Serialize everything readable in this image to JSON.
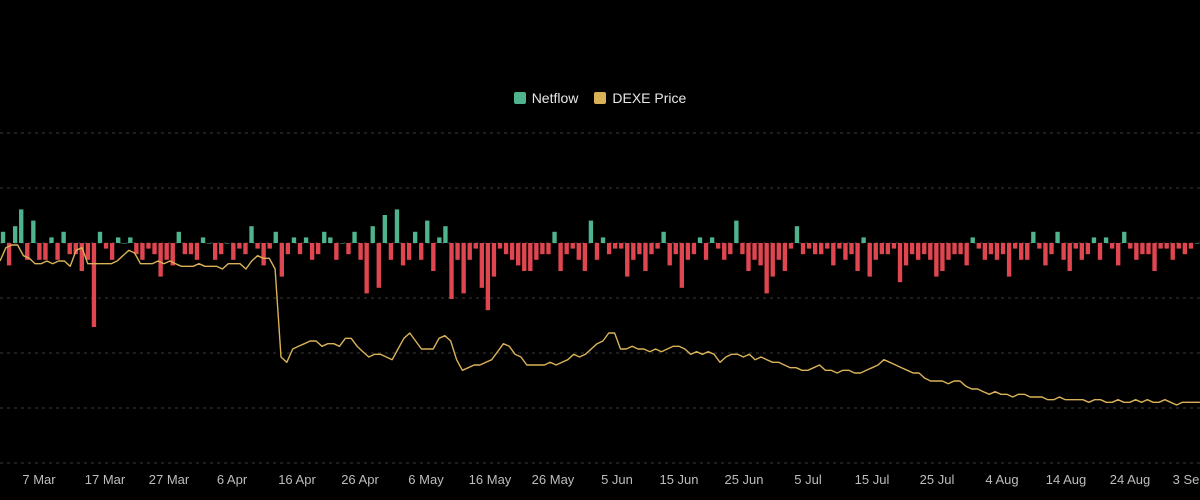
{
  "chart_data": {
    "type": "bar",
    "legend": {
      "placement": "top-center",
      "items": [
        {
          "label": "Netflow",
          "color": "#4fb38d"
        },
        {
          "label": "DEXE Price",
          "color": "#d9b257"
        }
      ]
    },
    "x_ticks": [
      "7 Mar",
      "17 Mar",
      "27 Mar",
      "6 Apr",
      "16 Apr",
      "26 Apr",
      "6 May",
      "16 May",
      "26 May",
      "5 Jun",
      "15 Jun",
      "25 Jun",
      "5 Jul",
      "15 Jul",
      "25 Jul",
      "4 Aug",
      "14 Aug",
      "24 Aug",
      "3 Se"
    ],
    "grid": true,
    "colors": {
      "positive": "#4fb38d",
      "negative": "#e0464f",
      "price": "#d9b257",
      "grid": "#3a3a3a"
    },
    "series": [
      {
        "name": "Netflow",
        "type": "bar",
        "values": [
          2,
          -4,
          3,
          6,
          -3,
          4,
          -3,
          -3,
          1,
          -3,
          2,
          -2,
          -2,
          -5,
          -3,
          -15,
          2,
          -1,
          -3,
          1,
          0,
          1,
          -2,
          -3,
          -1,
          -2,
          -6,
          -3,
          -4,
          2,
          -2,
          -2,
          -3,
          1,
          0,
          -3,
          -2,
          0,
          -3,
          -1,
          -2,
          3,
          -1,
          -4,
          -1,
          2,
          -6,
          -2,
          1,
          -2,
          1,
          -3,
          -2,
          2,
          1,
          -3,
          0,
          -2,
          2,
          -3,
          -9,
          3,
          -8,
          5,
          -3,
          6,
          -4,
          -3,
          2,
          -3,
          4,
          -5,
          1,
          3,
          -10,
          -3,
          -9,
          -3,
          -1,
          -8,
          -12,
          -6,
          -1,
          -2,
          -3,
          -4,
          -5,
          -5,
          -3,
          -2,
          -2,
          2,
          -5,
          -2,
          -1,
          -3,
          -5,
          4,
          -3,
          1,
          -2,
          -1,
          -1,
          -6,
          -3,
          -2,
          -5,
          -2,
          -1,
          2,
          -4,
          -2,
          -8,
          -3,
          -2,
          1,
          -3,
          1,
          -1,
          -3,
          -2,
          4,
          -2,
          -5,
          -3,
          -4,
          -9,
          -6,
          -3,
          -5,
          -1,
          3,
          -2,
          -1,
          -2,
          -2,
          -1,
          -4,
          -1,
          -3,
          -2,
          -5,
          1,
          -6,
          -3,
          -2,
          -2,
          -1,
          -7,
          -4,
          -2,
          -3,
          -2,
          -3,
          -6,
          -5,
          -3,
          -2,
          -2,
          -4,
          1,
          -1,
          -3,
          -2,
          -3,
          -2,
          -6,
          -1,
          -3,
          -3,
          2,
          -1,
          -4,
          -2,
          2,
          -3,
          -5,
          -1,
          -3,
          -2,
          1,
          -3,
          1,
          -1,
          -4,
          2,
          -1,
          -3,
          -2,
          -2,
          -5,
          -1,
          -1,
          -3,
          -1,
          -2,
          -1,
          0
        ]
      },
      {
        "name": "DEXE Price",
        "type": "line",
        "values": [
          0.93,
          0.98,
          0.99,
          0.99,
          0.95,
          0.94,
          0.92,
          0.92,
          0.93,
          0.92,
          0.93,
          0.93,
          0.91,
          0.97,
          0.98,
          0.92,
          0.92,
          0.92,
          0.92,
          0.92,
          0.93,
          0.95,
          0.97,
          0.96,
          0.92,
          0.92,
          0.92,
          0.93,
          0.92,
          0.93,
          0.92,
          0.91,
          0.91,
          0.91,
          0.92,
          0.91,
          0.91,
          0.91,
          0.9,
          0.92,
          0.92,
          0.92,
          0.9,
          0.93,
          0.95,
          0.94,
          0.94,
          0.9,
          0.57,
          0.55,
          0.6,
          0.61,
          0.62,
          0.63,
          0.63,
          0.61,
          0.62,
          0.62,
          0.61,
          0.64,
          0.64,
          0.61,
          0.59,
          0.57,
          0.58,
          0.58,
          0.57,
          0.56,
          0.6,
          0.64,
          0.66,
          0.63,
          0.6,
          0.6,
          0.6,
          0.64,
          0.65,
          0.63,
          0.56,
          0.52,
          0.53,
          0.54,
          0.54,
          0.55,
          0.56,
          0.59,
          0.62,
          0.61,
          0.58,
          0.57,
          0.54,
          0.54,
          0.54,
          0.54,
          0.55,
          0.54,
          0.55,
          0.56,
          0.58,
          0.57,
          0.58,
          0.6,
          0.62,
          0.63,
          0.66,
          0.66,
          0.6,
          0.6,
          0.61,
          0.6,
          0.6,
          0.59,
          0.6,
          0.59,
          0.6,
          0.61,
          0.61,
          0.6,
          0.58,
          0.59,
          0.58,
          0.59,
          0.58,
          0.55,
          0.57,
          0.58,
          0.58,
          0.57,
          0.58,
          0.56,
          0.57,
          0.56,
          0.55,
          0.55,
          0.54,
          0.53,
          0.53,
          0.52,
          0.52,
          0.53,
          0.54,
          0.52,
          0.52,
          0.51,
          0.52,
          0.52,
          0.51,
          0.51,
          0.52,
          0.53,
          0.54,
          0.56,
          0.55,
          0.54,
          0.53,
          0.52,
          0.51,
          0.51,
          0.49,
          0.48,
          0.48,
          0.48,
          0.47,
          0.48,
          0.48,
          0.46,
          0.45,
          0.45,
          0.44,
          0.43,
          0.44,
          0.43,
          0.43,
          0.42,
          0.43,
          0.43,
          0.42,
          0.42,
          0.42,
          0.41,
          0.41,
          0.42,
          0.41,
          0.41,
          0.41,
          0.41,
          0.4,
          0.41,
          0.41,
          0.4,
          0.4,
          0.41,
          0.4,
          0.4,
          0.41,
          0.4,
          0.41,
          0.4,
          0.4,
          0.41,
          0.4,
          0.39,
          0.4,
          0.4,
          0.4,
          0.4
        ]
      }
    ]
  }
}
